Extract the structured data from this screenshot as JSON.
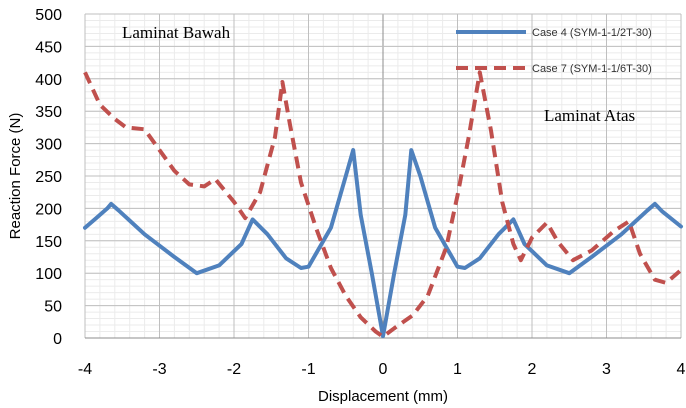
{
  "chart_data": {
    "type": "line",
    "xlabel": "Displacement (mm)",
    "ylabel": "Reaction Force (N)",
    "xlim": [
      -4,
      4
    ],
    "ylim": [
      0,
      500
    ],
    "x_ticks": [
      -4,
      -3,
      -2,
      -1,
      0,
      1,
      2,
      3,
      4
    ],
    "y_ticks": [
      0,
      50,
      100,
      150,
      200,
      250,
      300,
      350,
      400,
      450,
      500
    ],
    "grid": true,
    "legend_position": "top-right",
    "annotations": [
      "Laminat Bawah",
      "Laminat Atas"
    ],
    "series": [
      {
        "name": "Case 4 (SYM-1-1/2T-30)",
        "color": "#4F81BD",
        "style": "solid",
        "points": [
          [
            -4.0,
            170
          ],
          [
            -3.85,
            185
          ],
          [
            -3.7,
            200
          ],
          [
            -3.65,
            207
          ],
          [
            -3.55,
            197
          ],
          [
            -3.2,
            160
          ],
          [
            -2.8,
            125
          ],
          [
            -2.5,
            100
          ],
          [
            -2.2,
            112
          ],
          [
            -1.9,
            145
          ],
          [
            -1.75,
            183
          ],
          [
            -1.55,
            160
          ],
          [
            -1.3,
            123
          ],
          [
            -1.1,
            108
          ],
          [
            -1.0,
            110
          ],
          [
            -0.7,
            170
          ],
          [
            -0.5,
            250
          ],
          [
            -0.4,
            290
          ],
          [
            -0.3,
            190
          ],
          [
            -0.15,
            100
          ],
          [
            0.0,
            3
          ],
          [
            0.15,
            100
          ],
          [
            0.3,
            190
          ],
          [
            0.38,
            290
          ],
          [
            0.5,
            250
          ],
          [
            0.7,
            170
          ],
          [
            1.0,
            110
          ],
          [
            1.1,
            108
          ],
          [
            1.3,
            123
          ],
          [
            1.55,
            160
          ],
          [
            1.75,
            183
          ],
          [
            1.9,
            145
          ],
          [
            2.2,
            112
          ],
          [
            2.5,
            100
          ],
          [
            2.8,
            125
          ],
          [
            3.2,
            160
          ],
          [
            3.55,
            197
          ],
          [
            3.65,
            207
          ],
          [
            3.75,
            195
          ],
          [
            4.0,
            172
          ]
        ]
      },
      {
        "name": "Case 7 (SYM-1-1/6T-30)",
        "color": "#C0504D",
        "style": "dashed",
        "points": [
          [
            -4.0,
            410
          ],
          [
            -3.8,
            360
          ],
          [
            -3.6,
            338
          ],
          [
            -3.45,
            325
          ],
          [
            -3.2,
            322
          ],
          [
            -3.0,
            290
          ],
          [
            -2.8,
            258
          ],
          [
            -2.6,
            237
          ],
          [
            -2.4,
            234
          ],
          [
            -2.25,
            245
          ],
          [
            -2.0,
            210
          ],
          [
            -1.85,
            185
          ],
          [
            -1.65,
            225
          ],
          [
            -1.45,
            310
          ],
          [
            -1.35,
            395
          ],
          [
            -1.25,
            330
          ],
          [
            -1.1,
            240
          ],
          [
            -0.9,
            170
          ],
          [
            -0.7,
            108
          ],
          [
            -0.5,
            65
          ],
          [
            -0.3,
            32
          ],
          [
            -0.1,
            10
          ],
          [
            0.0,
            2
          ],
          [
            0.15,
            15
          ],
          [
            0.4,
            35
          ],
          [
            0.6,
            65
          ],
          [
            0.85,
            140
          ],
          [
            1.0,
            220
          ],
          [
            1.15,
            310
          ],
          [
            1.3,
            410
          ],
          [
            1.45,
            320
          ],
          [
            1.6,
            210
          ],
          [
            1.75,
            145
          ],
          [
            1.85,
            120
          ],
          [
            2.0,
            155
          ],
          [
            2.2,
            178
          ],
          [
            2.35,
            148
          ],
          [
            2.55,
            120
          ],
          [
            2.8,
            135
          ],
          [
            3.1,
            165
          ],
          [
            3.3,
            180
          ],
          [
            3.45,
            130
          ],
          [
            3.65,
            90
          ],
          [
            3.8,
            85
          ],
          [
            4.0,
            105
          ]
        ]
      }
    ]
  }
}
